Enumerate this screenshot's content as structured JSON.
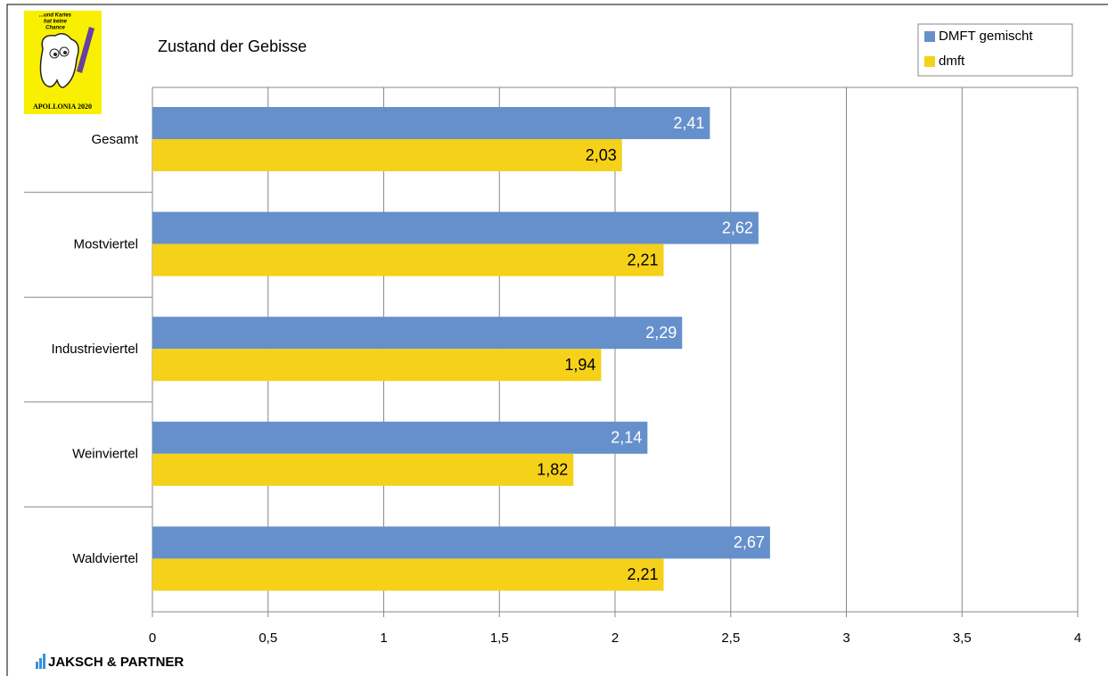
{
  "chart_data": {
    "type": "bar",
    "orientation": "horizontal",
    "title": "Zustand der Gebisse",
    "categories": [
      "Gesamt",
      "Mostviertel",
      "Industrieviertel",
      "Weinviertel",
      "Waldviertel"
    ],
    "series": [
      {
        "name": "DMFT gemischt",
        "color": "#6690cc",
        "label_color": "#ffffff",
        "values": [
          2.41,
          2.62,
          2.29,
          2.14,
          2.67
        ],
        "value_labels": [
          "2,41",
          "2,62",
          "2,29",
          "2,14",
          "2,67"
        ]
      },
      {
        "name": "dmft",
        "color": "#f5d11a",
        "label_color": "#000000",
        "values": [
          2.03,
          2.21,
          1.94,
          1.82,
          2.21
        ],
        "value_labels": [
          "2,03",
          "2,21",
          "1,94",
          "1,82",
          "2,21"
        ]
      }
    ],
    "xlim": [
      0,
      4
    ],
    "xticks": [
      0,
      {
        "value": 0.5,
        "label": "0,5"
      },
      1,
      {
        "value": 1.5,
        "label": "1,5"
      },
      2,
      {
        "value": 2.5,
        "label": "2,5"
      },
      3,
      {
        "value": 3.5,
        "label": "3,5"
      },
      4
    ],
    "grid": true,
    "legend": "top-right"
  },
  "branding": {
    "logo_lines": [
      "...und Karies",
      "hat keine",
      "Chance"
    ],
    "logo_caption": "APOLLONIA 2020",
    "footer": "JAKSCH & PARTNER"
  }
}
